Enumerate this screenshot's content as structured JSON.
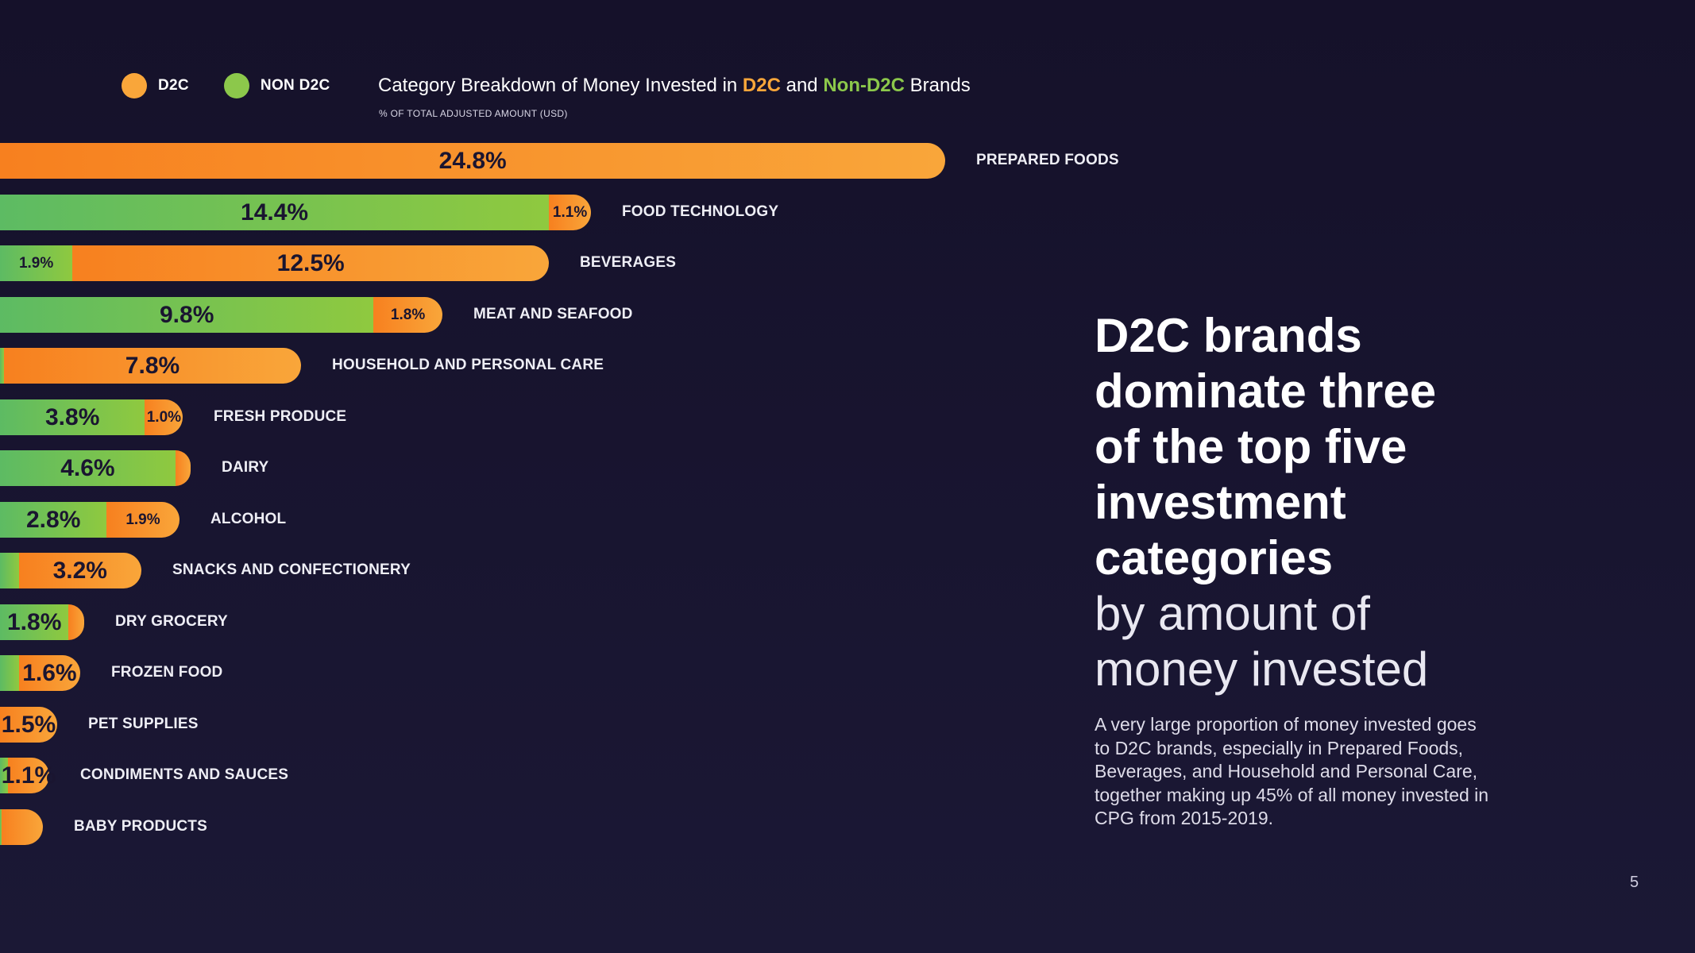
{
  "legend": {
    "d2c_label": "D2C",
    "non_d2c_label": "NON D2C",
    "d2c_color": "#f9a63a",
    "non_d2c_color": "#8cc84b"
  },
  "title": {
    "prefix": "Category Breakdown of Money Invested in ",
    "d2c": "D2C",
    "middle": " and ",
    "non_d2c": "Non-D2C",
    "suffix": " Brands",
    "subtitle": "% OF TOTAL ADJUSTED AMOUNT (USD)"
  },
  "chart_data": {
    "type": "bar",
    "orientation": "horizontal",
    "stacked": true,
    "title": "Category Breakdown of Money Invested in D2C and Non-D2C Brands",
    "ylabel": "% OF TOTAL ADJUSTED AMOUNT (USD)",
    "categories": [
      "PREPARED FOODS",
      "FOOD TECHNOLOGY",
      "BEVERAGES",
      "MEAT AND SEAFOOD",
      "HOUSEHOLD AND PERSONAL CARE",
      "FRESH PRODUCE",
      "DAIRY",
      "ALCOHOL",
      "SNACKS AND CONFECTIONERY",
      "DRY GROCERY",
      "FROZEN FOOD",
      "PET SUPPLIES",
      "CONDIMENTS AND SAUCES",
      "BABY PRODUCTS"
    ],
    "series": [
      {
        "name": "NON D2C",
        "values": [
          0,
          14.4,
          1.9,
          9.8,
          0.1,
          3.8,
          4.6,
          2.8,
          0.5,
          1.8,
          0.5,
          0,
          0.2,
          0.05
        ]
      },
      {
        "name": "D2C",
        "values": [
          24.8,
          1.1,
          12.5,
          1.8,
          7.8,
          1.0,
          0.4,
          1.9,
          3.2,
          0.4,
          1.6,
          1.5,
          1.1,
          0.5
        ]
      }
    ],
    "labels": [
      {
        "non": null,
        "d2c": "24.8%",
        "big": "d2c"
      },
      {
        "non": "14.4%",
        "d2c": "1.1%",
        "big": "non"
      },
      {
        "non": "1.9%",
        "d2c": "12.5%",
        "big": "d2c"
      },
      {
        "non": "9.8%",
        "d2c": "1.8%",
        "big": "non"
      },
      {
        "non": null,
        "d2c": "7.8%",
        "big": "d2c"
      },
      {
        "non": "3.8%",
        "d2c": "1.0%",
        "big": "non"
      },
      {
        "non": "4.6%",
        "d2c": null,
        "big": "non"
      },
      {
        "non": "2.8%",
        "d2c": "1.9%",
        "big": "non"
      },
      {
        "non": null,
        "d2c": "3.2%",
        "big": "d2c"
      },
      {
        "non": "1.8%",
        "d2c": null,
        "big": "non"
      },
      {
        "non": null,
        "d2c": "1.6%",
        "big": "d2c"
      },
      {
        "non": null,
        "d2c": "1.5%",
        "big": "d2c"
      },
      {
        "non": null,
        "d2c": "1.1%",
        "big": "d2c"
      },
      {
        "non": null,
        "d2c": null,
        "big": null
      }
    ]
  },
  "headline": {
    "bold_lines": [
      "D2C brands",
      "dominate three",
      "of the top five",
      "investment",
      "categories"
    ],
    "light_lines": [
      "by amount of",
      "money invested"
    ]
  },
  "body_text": "A very large proportion of money invested goes to D2C brands, especially in Prepared Foods, Beverages, and Household and Personal Care, together making up 45% of all money invested in CPG from 2015-2019.",
  "page_number": "5"
}
